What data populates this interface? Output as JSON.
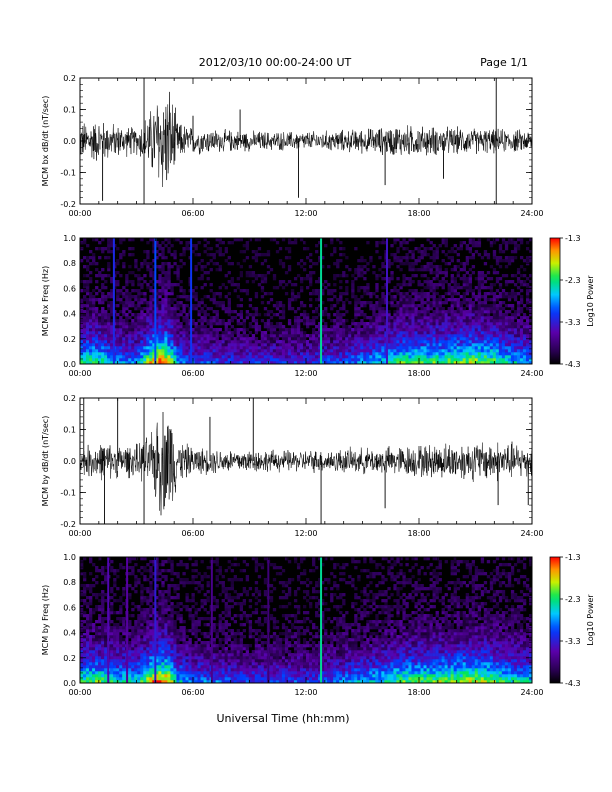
{
  "header": {
    "title": "2012/03/10  00:00-24:00 UT",
    "page": "Page 1/1"
  },
  "xlabel": "Universal Time (hh:mm)",
  "colors": {
    "trace": "#000000",
    "background": "#ffffff",
    "spec_bg": "#000000"
  },
  "chart_data": [
    {
      "type": "line",
      "name": "bx-waveform",
      "ylabel": "MCM bx dB/dt (nT/sec)",
      "x_ticks": [
        "00:00",
        "06:00",
        "12:00",
        "18:00",
        "24:00"
      ],
      "y_ticks": [
        "0.2",
        "0.1",
        "0.0",
        "-0.1",
        "-0.2"
      ],
      "xlim": [
        0,
        24
      ],
      "ylim": [
        -0.2,
        0.2
      ],
      "x_unit": "hours UT",
      "envelope": [
        [
          0,
          0.07
        ],
        [
          1,
          0.08
        ],
        [
          2,
          0.06
        ],
        [
          3,
          0.05
        ],
        [
          3.8,
          0.12
        ],
        [
          4.2,
          0.2
        ],
        [
          4.8,
          0.2
        ],
        [
          5.2,
          0.07
        ],
        [
          6,
          0.05
        ],
        [
          8,
          0.04
        ],
        [
          10,
          0.035
        ],
        [
          12,
          0.035
        ],
        [
          14,
          0.04
        ],
        [
          16,
          0.05
        ],
        [
          17,
          0.06
        ],
        [
          18,
          0.055
        ],
        [
          20,
          0.05
        ],
        [
          22,
          0.045
        ],
        [
          24,
          0.04
        ]
      ],
      "spikes": [
        [
          1.2,
          -0.19
        ],
        [
          3.4,
          0.2
        ],
        [
          3.4,
          -0.2
        ],
        [
          6,
          0.08
        ],
        [
          8.5,
          0.1
        ],
        [
          11.6,
          -0.18
        ],
        [
          16.2,
          -0.14
        ],
        [
          19.3,
          -0.12
        ],
        [
          22.1,
          0.2
        ],
        [
          22.1,
          -0.2
        ]
      ]
    },
    {
      "type": "heatmap",
      "name": "bx-spectrogram",
      "ylabel": "MCM bx Freq (Hz)",
      "x_ticks": [
        "00:00",
        "06:00",
        "12:00",
        "18:00",
        "24:00"
      ],
      "y_ticks": [
        "1.0",
        "0.8",
        "0.6",
        "0.4",
        "0.2",
        "0.0"
      ],
      "xlim": [
        0,
        24
      ],
      "ylim": [
        0,
        1.0
      ],
      "colorbar": {
        "label": "Log10 Power",
        "ticks": [
          "-1.3",
          "-2.3",
          "-3.3",
          "-4.3"
        ],
        "range": [
          -4.3,
          -1.3
        ]
      },
      "activity": [
        [
          0,
          0.7
        ],
        [
          1,
          0.7
        ],
        [
          2,
          0.55
        ],
        [
          3,
          0.5
        ],
        [
          4,
          0.95
        ],
        [
          4.6,
          0.95
        ],
        [
          5.2,
          0.55
        ],
        [
          6,
          0.45
        ],
        [
          8,
          0.4
        ],
        [
          10,
          0.38
        ],
        [
          12,
          0.38
        ],
        [
          14,
          0.45
        ],
        [
          16,
          0.6
        ],
        [
          17,
          0.72
        ],
        [
          18,
          0.7
        ],
        [
          20,
          0.75
        ],
        [
          21,
          0.8
        ],
        [
          22,
          0.72
        ],
        [
          23,
          0.6
        ],
        [
          24,
          0.55
        ]
      ],
      "vertical_lines": [
        [
          1.8,
          -3.2
        ],
        [
          4.0,
          -3.0
        ],
        [
          5.9,
          -3.1
        ],
        [
          12.8,
          -2.4
        ],
        [
          16.3,
          -3.4
        ]
      ]
    },
    {
      "type": "line",
      "name": "by-waveform",
      "ylabel": "MCM by dB/dt (nT/sec)",
      "x_ticks": [
        "00:00",
        "06:00",
        "12:00",
        "18:00",
        "24:00"
      ],
      "y_ticks": [
        "0.2",
        "0.1",
        "0.0",
        "-0.1",
        "-0.2"
      ],
      "xlim": [
        0,
        24
      ],
      "ylim": [
        -0.2,
        0.2
      ],
      "x_unit": "hours UT",
      "envelope": [
        [
          0,
          0.05
        ],
        [
          1,
          0.07
        ],
        [
          2,
          0.06
        ],
        [
          3,
          0.06
        ],
        [
          3.8,
          0.1
        ],
        [
          4.2,
          0.2
        ],
        [
          4.8,
          0.2
        ],
        [
          5.2,
          0.08
        ],
        [
          6,
          0.05
        ],
        [
          8,
          0.045
        ],
        [
          10,
          0.04
        ],
        [
          12,
          0.04
        ],
        [
          14,
          0.045
        ],
        [
          16,
          0.05
        ],
        [
          18,
          0.06
        ],
        [
          20,
          0.07
        ],
        [
          22,
          0.075
        ],
        [
          24,
          0.06
        ]
      ],
      "spikes": [
        [
          0.2,
          0.2
        ],
        [
          1.3,
          -0.2
        ],
        [
          2.0,
          0.2
        ],
        [
          3.4,
          0.2
        ],
        [
          3.4,
          -0.2
        ],
        [
          6.9,
          0.14
        ],
        [
          9.2,
          0.2
        ],
        [
          12.8,
          -0.2
        ],
        [
          16.2,
          -0.15
        ],
        [
          22.2,
          -0.14
        ],
        [
          23.8,
          -0.14
        ]
      ]
    },
    {
      "type": "heatmap",
      "name": "by-spectrogram",
      "ylabel": "MCM by Freq (Hz)",
      "x_ticks": [
        "00:00",
        "06:00",
        "12:00",
        "18:00",
        "24:00"
      ],
      "y_ticks": [
        "1.0",
        "0.8",
        "0.6",
        "0.4",
        "0.2",
        "0.0"
      ],
      "xlim": [
        0,
        24
      ],
      "ylim": [
        0,
        1.0
      ],
      "colorbar": {
        "label": "Log10 Power",
        "ticks": [
          "-1.3",
          "-2.3",
          "-3.3",
          "-4.3"
        ],
        "range": [
          -4.3,
          -1.3
        ]
      },
      "activity": [
        [
          0,
          0.72
        ],
        [
          1,
          0.72
        ],
        [
          2,
          0.62
        ],
        [
          3,
          0.6
        ],
        [
          4,
          0.95
        ],
        [
          4.6,
          0.95
        ],
        [
          5.2,
          0.6
        ],
        [
          6,
          0.5
        ],
        [
          8,
          0.45
        ],
        [
          10,
          0.42
        ],
        [
          12,
          0.42
        ],
        [
          14,
          0.5
        ],
        [
          16,
          0.62
        ],
        [
          17,
          0.72
        ],
        [
          18,
          0.72
        ],
        [
          20,
          0.78
        ],
        [
          21,
          0.82
        ],
        [
          22,
          0.75
        ],
        [
          23,
          0.65
        ],
        [
          24,
          0.6
        ]
      ],
      "vertical_lines": [
        [
          1.5,
          -3.5
        ],
        [
          2.5,
          -3.6
        ],
        [
          4.0,
          -3.3
        ],
        [
          7.0,
          -3.7
        ],
        [
          10.0,
          -3.8
        ],
        [
          12.8,
          -2.4
        ]
      ]
    }
  ]
}
